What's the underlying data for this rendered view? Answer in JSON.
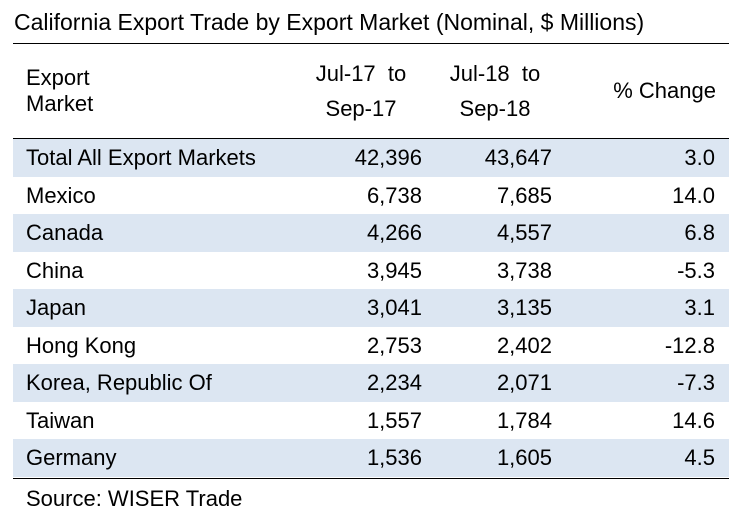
{
  "title": "California Export Trade by Export Market (Nominal, $ Millions)",
  "header": {
    "col0": "Export Market",
    "col1_line1": "Jul-17  to",
    "col1_line2": "Sep-17",
    "col2_line1": "Jul-18  to",
    "col2_line2": "Sep-18",
    "col3": "% Change"
  },
  "rows": [
    {
      "market": "Total All Export Markets",
      "prev": "42,396",
      "curr": "43,647",
      "change": "3.0"
    },
    {
      "market": "Mexico",
      "prev": "6,738",
      "curr": "7,685",
      "change": "14.0"
    },
    {
      "market": "Canada",
      "prev": "4,266",
      "curr": "4,557",
      "change": "6.8"
    },
    {
      "market": "China",
      "prev": "3,945",
      "curr": "3,738",
      "change": "-5.3"
    },
    {
      "market": "Japan",
      "prev": "3,041",
      "curr": "3,135",
      "change": "3.1"
    },
    {
      "market": "Hong Kong",
      "prev": "2,753",
      "curr": "2,402",
      "change": "-12.8"
    },
    {
      "market": "Korea, Republic Of",
      "prev": "2,234",
      "curr": "2,071",
      "change": "-7.3"
    },
    {
      "market": "Taiwan",
      "prev": "1,557",
      "curr": "1,784",
      "change": "14.6"
    },
    {
      "market": "Germany",
      "prev": "1,536",
      "curr": "1,605",
      "change": "4.5"
    }
  ],
  "source": "Source: WISER Trade",
  "colors": {
    "shade": "#dce6f2"
  }
}
